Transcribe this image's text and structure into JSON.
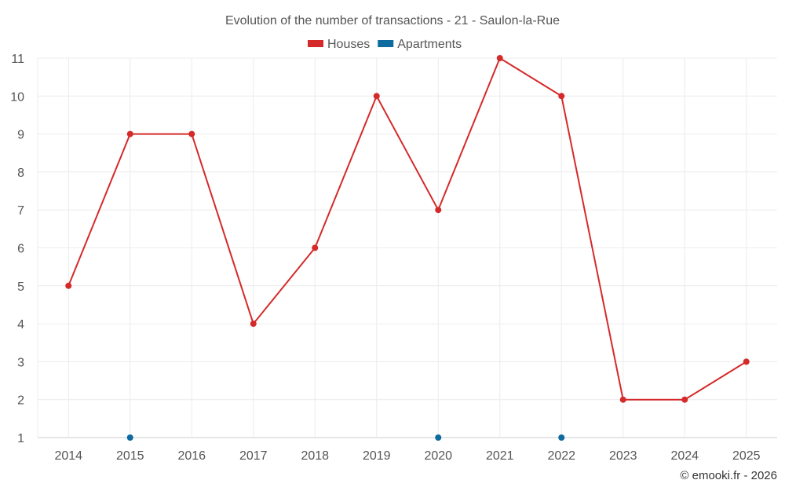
{
  "chart_data": {
    "type": "line",
    "title": "Evolution of the number of transactions - 21 - Saulon-la-Rue",
    "categories": [
      "2014",
      "2015",
      "2016",
      "2017",
      "2018",
      "2019",
      "2020",
      "2021",
      "2022",
      "2023",
      "2024",
      "2025"
    ],
    "ylim": [
      1,
      11
    ],
    "yticks": [
      1,
      2,
      3,
      4,
      5,
      6,
      7,
      8,
      9,
      10,
      11
    ],
    "grid": true,
    "legend_position": "top",
    "series": [
      {
        "name": "Houses",
        "color": "#d42a2a",
        "values": [
          5,
          9,
          9,
          4,
          6,
          10,
          7,
          11,
          10,
          2,
          2,
          3
        ]
      },
      {
        "name": "Apartments",
        "color": "#0d6ba0",
        "values": [
          null,
          1,
          null,
          null,
          null,
          null,
          1,
          null,
          1,
          null,
          null,
          null
        ]
      }
    ]
  },
  "credit": "© emooki.fr - 2026"
}
